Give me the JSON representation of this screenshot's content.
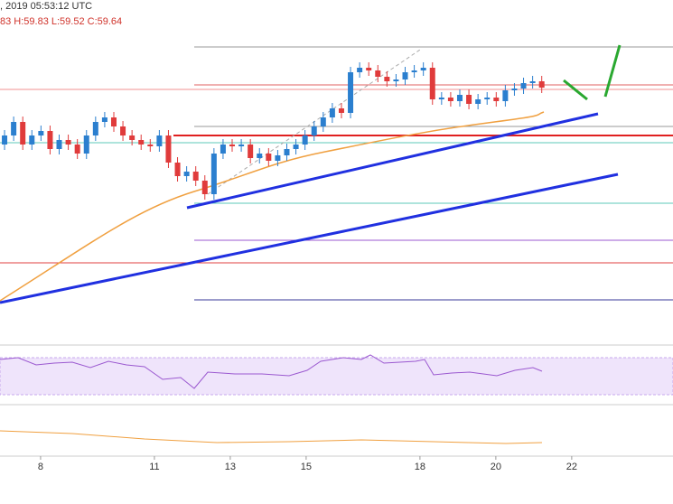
{
  "header": {
    "time": ", 2019 05:53:12 UTC",
    "ohlc": "83 H:59.83 L:59.52 C:59.64"
  },
  "chart_data": {
    "type": "candlestick",
    "x": [
      7.05,
      7.29,
      7.53,
      7.77,
      8.01,
      8.25,
      8.49,
      8.73,
      8.97,
      9.21,
      9.45,
      9.69,
      9.93,
      10.17,
      10.41,
      10.65,
      10.89,
      11.13,
      11.37,
      11.61,
      11.85,
      12.09,
      12.33,
      12.57,
      12.81,
      13.05,
      13.29,
      13.53,
      13.77,
      14.01,
      14.25,
      14.49,
      14.73,
      14.97,
      15.21,
      15.45,
      15.69,
      15.93,
      16.17,
      16.41,
      16.65,
      16.89,
      17.13,
      17.37,
      17.61,
      17.85,
      18.09,
      18.33,
      18.57,
      18.81,
      19.05,
      19.29,
      19.53,
      19.77,
      20.01,
      20.25,
      20.49,
      20.73,
      20.97,
      21.21
    ],
    "open": [
      59.0,
      59.1,
      59.25,
      59.0,
      59.1,
      59.15,
      58.95,
      59.05,
      59.0,
      58.9,
      59.1,
      59.25,
      59.3,
      59.2,
      59.1,
      59.05,
      59.0,
      58.98,
      59.1,
      58.8,
      58.65,
      58.7,
      58.6,
      58.45,
      58.9,
      59.0,
      58.98,
      59.0,
      58.85,
      58.9,
      58.82,
      58.88,
      58.95,
      59.0,
      59.1,
      59.2,
      59.3,
      59.4,
      59.35,
      59.8,
      59.85,
      59.82,
      59.75,
      59.7,
      59.72,
      59.8,
      59.82,
      59.85,
      59.5,
      59.52,
      59.48,
      59.55,
      59.45,
      59.5,
      59.52,
      59.48,
      59.6,
      59.62,
      59.68,
      59.7
    ],
    "close": [
      59.1,
      59.25,
      59.0,
      59.1,
      59.15,
      58.95,
      59.05,
      59.0,
      58.9,
      59.1,
      59.25,
      59.3,
      59.2,
      59.1,
      59.05,
      59.0,
      58.98,
      59.1,
      58.8,
      58.65,
      58.7,
      58.6,
      58.45,
      58.9,
      59.0,
      58.98,
      59.0,
      58.85,
      58.9,
      58.82,
      58.88,
      58.95,
      59.0,
      59.1,
      59.2,
      59.3,
      59.4,
      59.35,
      59.8,
      59.85,
      59.82,
      59.75,
      59.7,
      59.72,
      59.8,
      59.82,
      59.85,
      59.5,
      59.52,
      59.48,
      59.55,
      59.45,
      59.5,
      59.52,
      59.48,
      59.6,
      59.62,
      59.68,
      59.7,
      59.63
    ],
    "up_color": "#2b7fcf",
    "down_color": "#e03b3b",
    "xlim": [
      6.93,
      24.67
    ],
    "ylim": [
      56.8,
      60.2
    ],
    "xticks": [
      8,
      11,
      13,
      15,
      18,
      20,
      22
    ]
  }
}
